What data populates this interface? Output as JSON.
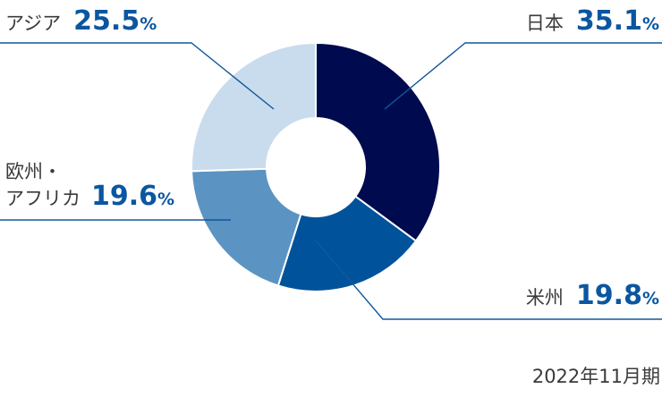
{
  "chart_data": {
    "type": "pie",
    "variant": "donut",
    "unit": "%",
    "slices": [
      {
        "name": "日本",
        "value": 35.1,
        "color": "#000a4e"
      },
      {
        "name": "米州",
        "value": 19.8,
        "color": "#00539a"
      },
      {
        "name": "欧州・アフリカ",
        "value": 19.6,
        "color": "#5b93c3"
      },
      {
        "name": "アジア",
        "value": 25.5,
        "color": "#c9dced"
      }
    ],
    "label_lines": [
      "欧州・",
      "アフリカ"
    ],
    "line_color": "#11589c",
    "note": "2022年11月期"
  }
}
